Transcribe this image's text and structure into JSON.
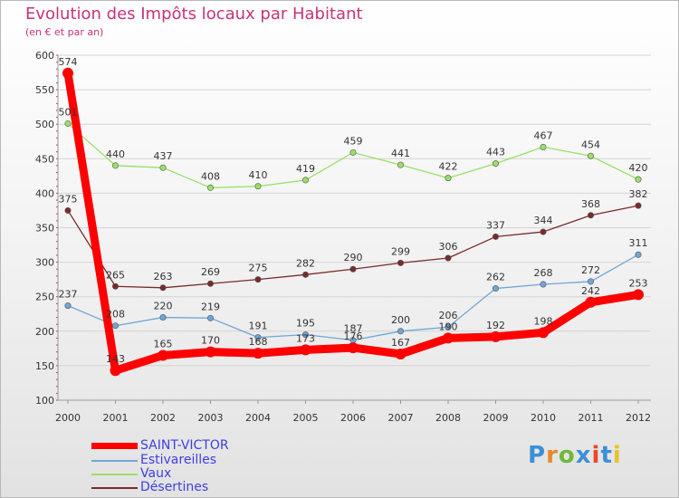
{
  "header": {
    "title": "Evolution des Impôts locaux par Habitant",
    "subtitle": "(en € et par an)"
  },
  "logo": {
    "text": "Proxiti"
  },
  "colors": {
    "title": "#c8327a",
    "legend_text": "#3f3fe0",
    "saint_victor": "#ff0000",
    "estivareilles": "#6fa6d6",
    "vaux": "#99e066",
    "desertines": "#7a2a2a",
    "grid": "#d4d4d4",
    "axis": "#999999"
  },
  "chart_data": {
    "type": "line",
    "title": "Evolution des Impôts locaux par Habitant",
    "subtitle": "(en € et par an)",
    "xlabel": "",
    "ylabel": "",
    "ylim": [
      100,
      600
    ],
    "yticks": [
      100,
      150,
      200,
      250,
      300,
      350,
      400,
      450,
      500,
      550,
      600
    ],
    "x": [
      2000,
      2001,
      2002,
      2003,
      2004,
      2005,
      2006,
      2007,
      2008,
      2009,
      2010,
      2011,
      2012
    ],
    "grid": "horizontal",
    "legend_position": "bottom-left",
    "series": [
      {
        "name": "SAINT-VICTOR",
        "color": "#ff0000",
        "values": [
          574,
          143,
          165,
          170,
          168,
          173,
          176,
          167,
          190,
          192,
          198,
          242,
          253
        ],
        "labels": [
          "574",
          "143",
          "165",
          "170",
          "168",
          "173",
          "176",
          "167",
          "190",
          "192",
          "198",
          "242",
          "253"
        ]
      },
      {
        "name": "Estivareilles",
        "color": "#6fa6d6",
        "values": [
          237,
          208,
          220,
          219,
          191,
          195,
          187,
          200,
          206,
          262,
          268,
          272,
          311
        ],
        "labels": [
          "237",
          "208",
          "220",
          "219",
          "191",
          "195",
          "187",
          "200",
          "206",
          "262",
          "268",
          "272",
          "311"
        ]
      },
      {
        "name": "Vaux",
        "color": "#99e066",
        "values": [
          501,
          440,
          437,
          408,
          410,
          419,
          459,
          441,
          422,
          443,
          467,
          454,
          420
        ],
        "labels": [
          "501",
          "440",
          "437",
          "408",
          "410",
          "419",
          "459",
          "441",
          "422",
          "443",
          "467",
          "454",
          "420"
        ]
      },
      {
        "name": "Désertines",
        "color": "#7a2a2a",
        "values": [
          375,
          265,
          263,
          269,
          275,
          282,
          290,
          299,
          306,
          337,
          344,
          368,
          382
        ],
        "labels": [
          "375",
          "265",
          "263",
          "269",
          "275",
          "282",
          "290",
          "299",
          "306",
          "337",
          "344",
          "368",
          "382"
        ]
      }
    ]
  }
}
